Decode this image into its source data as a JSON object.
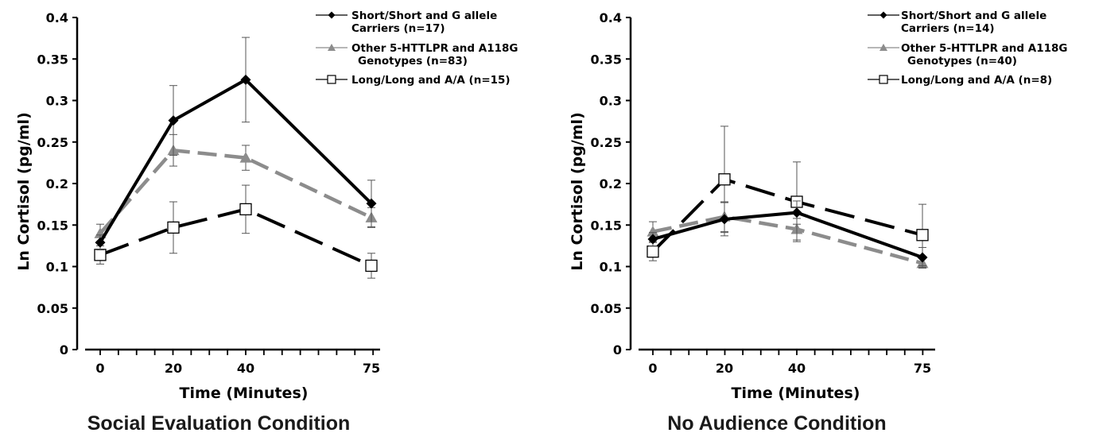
{
  "chart_data": [
    {
      "type": "line",
      "caption": "Social Evaluation Condition",
      "xlabel": "Time (Minutes)",
      "ylabel": "Ln Cortisol (pg/ml)",
      "x": [
        0,
        20,
        40,
        75
      ],
      "x_tick_labels": [
        "0",
        "20",
        "40",
        "75"
      ],
      "ylim": [
        0,
        0.4
      ],
      "y_ticks": [
        0,
        0.05,
        0.1,
        0.15,
        0.2,
        0.25,
        0.3,
        0.35,
        0.4
      ],
      "y_tick_labels": [
        "0",
        "0.05",
        "0.1",
        "0.15",
        "0.2",
        "0.25",
        "0.3",
        "0.35",
        "0.4"
      ],
      "grid": false,
      "legend_position": "top-right",
      "series": [
        {
          "name": "Short/Short and G allele Carriers  (n=17)",
          "legend_lines": [
            "Short/Short and G allele",
            "Carriers  (n=17)"
          ],
          "values": [
            0.129,
            0.276,
            0.325,
            0.176
          ],
          "error": [
            0.009,
            0.042,
            0.051,
            0.028
          ],
          "color": "#000000",
          "line_style": "solid",
          "marker": "diamond"
        },
        {
          "name": "Other 5-HTTLPR and A118G Genotypes (n=83)",
          "legend_lines": [
            "Other 5-HTTLPR and A118G",
            "Genotypes (n=83)"
          ],
          "values": [
            0.14,
            0.24,
            0.231,
            0.159
          ],
          "error": [
            0.011,
            0.019,
            0.015,
            0.012
          ],
          "color": "#8c8c8c",
          "line_style": "dashed",
          "marker": "triangle"
        },
        {
          "name": "Long/Long and A/A (n=15)",
          "legend_lines": [
            "Long/Long and A/A (n=15)"
          ],
          "values": [
            0.114,
            0.147,
            0.169,
            0.101
          ],
          "error": [
            0.011,
            0.031,
            0.029,
            0.015
          ],
          "color": "#000000",
          "line_style": "long-dashed",
          "marker": "square"
        }
      ]
    },
    {
      "type": "line",
      "caption": "No Audience Condition",
      "xlabel": "Time (Minutes)",
      "ylabel": "Ln Cortisol (pg/ml)",
      "x": [
        0,
        20,
        40,
        75
      ],
      "x_tick_labels": [
        "0",
        "20",
        "40",
        "75"
      ],
      "ylim": [
        0,
        0.4
      ],
      "y_ticks": [
        0,
        0.05,
        0.1,
        0.15,
        0.2,
        0.25,
        0.3,
        0.35,
        0.4
      ],
      "y_tick_labels": [
        "0",
        "0.05",
        "0.1",
        "0.15",
        "0.2",
        "0.25",
        "0.3",
        "0.35",
        "0.4"
      ],
      "grid": false,
      "legend_position": "top-right",
      "series": [
        {
          "name": "Short/Short and G allele Carriers (n=14)",
          "legend_lines": [
            "Short/Short and G allele",
            "Carriers (n=14)"
          ],
          "values": [
            0.133,
            0.157,
            0.165,
            0.111
          ],
          "error": [
            0.008,
            0.02,
            0.014,
            0.012
          ],
          "color": "#000000",
          "line_style": "solid",
          "marker": "diamond"
        },
        {
          "name": "Other 5-HTTLPR and A118G Genotypes (n=40)",
          "legend_lines": [
            "Other 5-HTTLPR and A118G",
            "Genotypes (n=40)"
          ],
          "values": [
            0.142,
            0.16,
            0.145,
            0.104
          ],
          "error": [
            0.012,
            0.018,
            0.013,
            0.006
          ],
          "color": "#8c8c8c",
          "line_style": "dashed",
          "marker": "triangle"
        },
        {
          "name": "Long/Long and A/A (n=8)",
          "legend_lines": [
            "Long/Long and A/A (n=8)"
          ],
          "values": [
            0.118,
            0.205,
            0.178,
            0.138
          ],
          "error": [
            0.011,
            0.064,
            0.048,
            0.037
          ],
          "color": "#000000",
          "line_style": "long-dashed",
          "marker": "square"
        }
      ]
    }
  ]
}
